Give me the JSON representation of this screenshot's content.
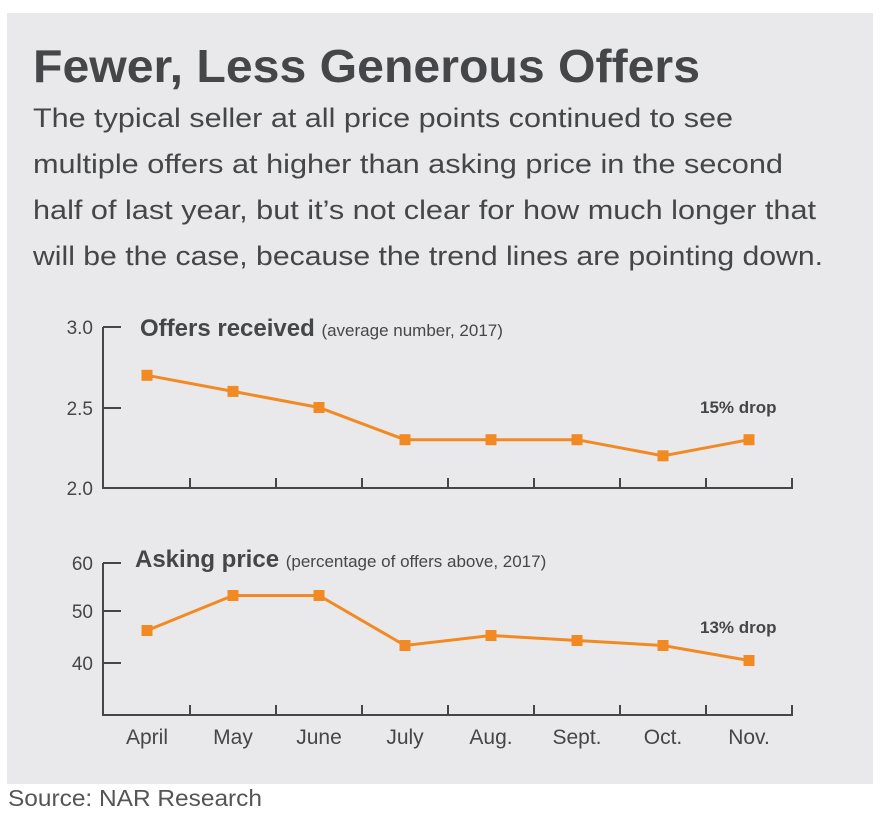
{
  "title": "Fewer, Less Generous Offers",
  "subtitle_lines": [
    "The typical seller at all price points continued to see",
    "multiple offers at higher than asking price in the second",
    "half of last year, but it’s not clear for how much longer that",
    "will be the case, because the trend lines are pointing down."
  ],
  "source": "Source: NAR Research",
  "colors": {
    "line": "#f28a24",
    "text": "#454649",
    "panel": "#e9e9eb"
  },
  "chart_data": [
    {
      "type": "line",
      "title": "Offers received",
      "subtitle": "(average number, 2017)",
      "categories": [
        "April",
        "May",
        "June",
        "July",
        "Aug.",
        "Sept.",
        "Oct.",
        "Nov."
      ],
      "values": [
        2.7,
        2.6,
        2.5,
        2.3,
        2.3,
        2.3,
        2.2,
        2.3
      ],
      "ylim": [
        2.0,
        3.0
      ],
      "yticks": [
        "2.0",
        "2.5",
        "3.0"
      ],
      "annotation": "15% drop",
      "marker": "square",
      "grid": false
    },
    {
      "type": "line",
      "title": "Asking price",
      "subtitle": "(percentage of offers above, 2017)",
      "categories": [
        "April",
        "May",
        "June",
        "July",
        "Aug.",
        "Sept.",
        "Oct.",
        "Nov."
      ],
      "values": [
        46.5,
        53.5,
        53.5,
        43.5,
        45.5,
        44.5,
        43.5,
        40.5
      ],
      "ylim": [
        30,
        60
      ],
      "yticks": [
        "40",
        "50",
        "60"
      ],
      "annotation": "13% drop",
      "marker": "square",
      "grid": false
    }
  ]
}
